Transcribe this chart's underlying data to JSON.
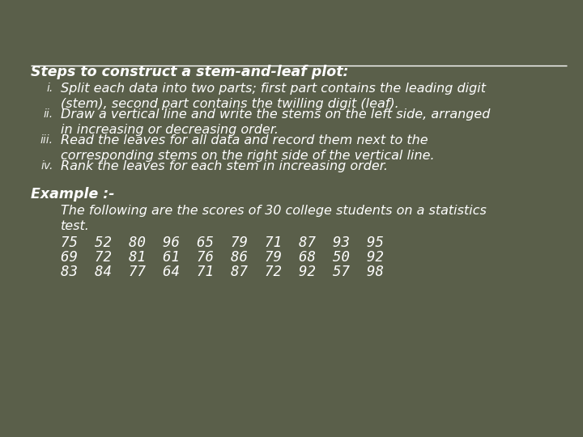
{
  "bg_color": "#5a5f4a",
  "text_color": "#ffffff",
  "title": "Steps to construct a stem-and-leaf plot:",
  "steps": [
    [
      "i.",
      "Split each data into two parts; first part contains the leading digit\n(stem), second part contains the twilling digit (leaf)."
    ],
    [
      "ii.",
      "Draw a vertical line and write the stems on the left side, arranged\nin increasing or decreasing order."
    ],
    [
      "iii.",
      "Read the leaves for all data and record them next to the\ncorresponding stems on the right side of the vertical line."
    ],
    [
      "iv.",
      "Rank the leaves for each stem in increasing order."
    ]
  ],
  "example_label": "Example :-",
  "example_text": "The following are the scores of 30 college students on a statistics\ntest.",
  "data_rows": [
    "75  52  80  96  65  79  71  87  93  95",
    "69  72  81  61  76  86  79  68  50  92",
    "83  84  77  64  71  87  72  92  57  98"
  ],
  "title_fontsize": 12.5,
  "step_num_fontsize": 10,
  "step_text_fontsize": 11.5,
  "example_label_fontsize": 12.5,
  "example_text_fontsize": 11.5,
  "data_fontsize": 12.5
}
